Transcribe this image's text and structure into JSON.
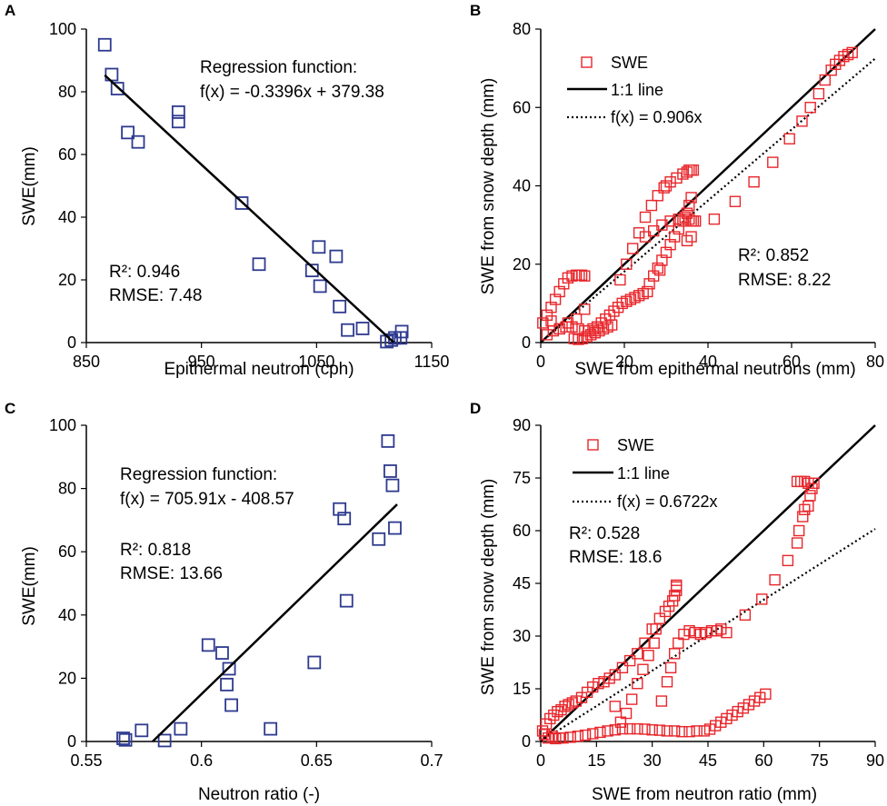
{
  "chart_data": [
    {
      "panel": "A",
      "type": "scatter",
      "xlabel": "Epithermal neutron (cph)",
      "ylabel": "SWE(mm)",
      "xlim": [
        850,
        1150
      ],
      "ylim": [
        0,
        100
      ],
      "xticks": [
        "850",
        "950",
        "1050",
        "1150"
      ],
      "yticks": [
        "0",
        "20",
        "40",
        "60",
        "80",
        "100"
      ],
      "marker_color": "#2e3a8f",
      "series": [
        {
          "name": "SWE",
          "x": [
            866,
            872,
            877,
            886,
            895,
            930,
            930,
            985,
            1000,
            1046,
            1052,
            1053,
            1067,
            1070,
            1077,
            1090,
            1111,
            1115,
            1118,
            1123,
            1124
          ],
          "y": [
            95,
            85.5,
            81,
            67,
            64,
            73.5,
            70.5,
            44.5,
            25,
            23,
            30.5,
            18,
            27.5,
            11.5,
            4,
            4.5,
            0.3,
            0.8,
            1.5,
            1.5,
            3.5
          ]
        }
      ],
      "regression": {
        "slope": -0.3396,
        "intercept": 379.38,
        "x_range": [
          866,
          1117
        ]
      },
      "annotations": {
        "regression_label": "Regression function:",
        "function_label": "f(x) = -0.3396x + 379.38",
        "r2_label": "R²: 0.946",
        "rmse_label": "RMSE: 7.48"
      }
    },
    {
      "panel": "B",
      "type": "scatter",
      "xlabel": "SWE from epithermal neutrons (mm)",
      "ylabel": "SWE from snow depth (mm)",
      "xlim": [
        0,
        80
      ],
      "ylim": [
        0,
        80
      ],
      "xticks": [
        "0",
        "20",
        "40",
        "60",
        "80"
      ],
      "yticks": [
        "0",
        "20",
        "40",
        "60",
        "80"
      ],
      "marker_color": "#e8262b",
      "series": [
        {
          "name": "SWE",
          "x": [
            0.5,
            1.5,
            2.5,
            3.5,
            4.5,
            5.5,
            6.5,
            7.5,
            8.5,
            9.2,
            9.8,
            10.5,
            1.5,
            3,
            4.5,
            6,
            7.5,
            9,
            10.5,
            11.5,
            12.5,
            13.5,
            14.5,
            15.5,
            16.5,
            17.5,
            18.5,
            19.5,
            20.5,
            21.5,
            22.5,
            23.5,
            24.5,
            25.5,
            26,
            27,
            28,
            29,
            30,
            31,
            32,
            33,
            34,
            35,
            35.5,
            36,
            19,
            20.5,
            22,
            23.5,
            25,
            26.5,
            28,
            29.5,
            31,
            32.5,
            34,
            35,
            35.5,
            36,
            36.5,
            25,
            27,
            29,
            31,
            33,
            34.5,
            35.5,
            36,
            36.5,
            37,
            41.5,
            46.5,
            51,
            55.5,
            59.5,
            62.5,
            64.5,
            66.5,
            68,
            69.5,
            70.5,
            71.5,
            72.5,
            73.5,
            74.5,
            8,
            9,
            10,
            11,
            12,
            13,
            14,
            15,
            16,
            17,
            2.5,
            4.5,
            6.5,
            8.5,
            10.5,
            28.5,
            30,
            35,
            36
          ],
          "y": [
            5,
            7,
            9,
            11,
            13,
            15,
            16.5,
            17,
            17.2,
            17.2,
            17.2,
            17,
            2,
            3,
            3.5,
            4,
            4,
            3.5,
            3,
            3,
            3.5,
            4,
            5,
            6,
            7,
            8,
            9,
            10,
            10.5,
            11,
            11.5,
            12,
            12.5,
            13,
            15,
            17,
            19,
            21,
            23,
            25,
            27,
            29,
            31,
            33,
            35,
            37,
            16,
            20,
            24,
            28,
            32,
            35,
            37.5,
            39.5,
            41,
            42,
            43,
            43.5,
            44,
            44,
            44,
            27,
            28.5,
            30,
            31,
            31.5,
            32,
            31.5,
            31,
            31,
            31,
            31.5,
            36,
            41,
            46,
            52,
            56.5,
            60,
            63.5,
            67,
            69.5,
            71,
            72,
            73,
            73.5,
            74,
            1,
            0.8,
            1,
            1.5,
            2,
            2.5,
            3,
            3.5,
            4,
            4.5,
            5.5,
            3.5,
            5,
            6,
            8.5,
            18.5,
            40,
            26,
            27
          ]
        }
      ],
      "reference_lines": [
        {
          "name": "1:1 line",
          "slope": 1,
          "style": "solid"
        },
        {
          "name": "f(x) = 0.906x",
          "slope": 0.906,
          "style": "dotted"
        }
      ],
      "legend": [
        "SWE",
        "1:1 line",
        "f(x) = 0.906x"
      ],
      "legend_position": "top-left",
      "annotations": {
        "r2_label": "R²: 0.852",
        "rmse_label": "RMSE: 8.22"
      }
    },
    {
      "panel": "C",
      "type": "scatter",
      "xlabel": "Neutron ratio (-)",
      "ylabel": "SWE(mm)",
      "xlim": [
        0.55,
        0.7
      ],
      "ylim": [
        0,
        100
      ],
      "xticks": [
        "0.55",
        "0.6",
        "0.65",
        "0.7"
      ],
      "yticks": [
        "0",
        "20",
        "40",
        "60",
        "80",
        "100"
      ],
      "marker_color": "#2e3a8f",
      "series": [
        {
          "name": "SWE",
          "x": [
            0.566,
            0.567,
            0.574,
            0.584,
            0.591,
            0.603,
            0.609,
            0.611,
            0.612,
            0.613,
            0.63,
            0.649,
            0.66,
            0.662,
            0.663,
            0.677,
            0.681,
            0.682,
            0.683,
            0.684
          ],
          "y": [
            1,
            0.5,
            3.5,
            0.3,
            4,
            30.5,
            28,
            18,
            23,
            11.5,
            4,
            25,
            73.5,
            70.5,
            44.5,
            64,
            95,
            85.5,
            81,
            67.5
          ]
        }
      ],
      "regression": {
        "slope": 705.91,
        "intercept": -408.57,
        "x_range": [
          0.5788,
          0.685
        ]
      },
      "annotations": {
        "regression_label": "Regression function:",
        "function_label": "f(x)  = 705.91x - 408.57",
        "r2_label": "R²: 0.818",
        "rmse_label": "RMSE: 13.66"
      }
    },
    {
      "panel": "D",
      "type": "scatter",
      "xlabel": "SWE from neutron ratio (mm)",
      "ylabel": "SWE from snow depth (mm)",
      "xlim": [
        0,
        90
      ],
      "ylim": [
        0,
        90
      ],
      "xticks": [
        "0",
        "15",
        "30",
        "45",
        "60",
        "75",
        "90"
      ],
      "yticks": [
        "0",
        "15",
        "30",
        "45",
        "60",
        "75",
        "90"
      ],
      "marker_color": "#e8262b",
      "series": [
        {
          "name": "SWE",
          "x": [
            0.5,
            1.5,
            2.5,
            3.5,
            4.5,
            5.5,
            6.5,
            7.5,
            8.5,
            9.5,
            11,
            12.5,
            14,
            15.5,
            17,
            18.5,
            20,
            22,
            24,
            26,
            28,
            30,
            32,
            33.5,
            34.5,
            35.5,
            36,
            36.5,
            36.5,
            36.5,
            20,
            21.5,
            23,
            24.5,
            26,
            27.5,
            29,
            30.5,
            31,
            32.5,
            34,
            35,
            36,
            37,
            38.5,
            40,
            41.5,
            43,
            44.5,
            46,
            47.5,
            48.5,
            50,
            55,
            59.5,
            63,
            66.5,
            69,
            69.5,
            70.5,
            71,
            72,
            72.5,
            73,
            73.5,
            72,
            71,
            70,
            69,
            2,
            4,
            6,
            8,
            10,
            12,
            14,
            16,
            18,
            20,
            22,
            24,
            26,
            28,
            30,
            32,
            34,
            36,
            38,
            40,
            42,
            44,
            45.5,
            47,
            48.5,
            50,
            51.5,
            53,
            54.5,
            56,
            57.5,
            59,
            60.5,
            1,
            3,
            5
          ],
          "y": [
            3,
            5,
            6.5,
            7.5,
            8.5,
            9,
            10,
            10.5,
            11,
            11.5,
            12.5,
            14,
            15.5,
            16.5,
            17,
            18,
            19,
            21,
            23,
            25,
            28,
            32,
            35,
            37,
            38.5,
            40,
            41.5,
            43,
            44,
            44.5,
            10,
            5.5,
            8,
            12,
            16.5,
            20.5,
            24.5,
            28,
            32,
            11.5,
            17,
            21,
            25,
            28,
            30.5,
            31.5,
            31,
            30.5,
            31,
            31.5,
            31.5,
            32,
            31,
            36,
            40.5,
            46,
            51.5,
            56.5,
            60,
            64,
            66,
            67,
            70,
            72,
            73.5,
            73.5,
            74,
            74,
            74,
            1,
            0.8,
            1,
            1.2,
            1.5,
            1.8,
            2.2,
            2.6,
            3,
            3.3,
            3.6,
            3.6,
            3.6,
            3.5,
            3.3,
            3.2,
            3,
            3,
            2.8,
            2.8,
            3,
            3,
            3.5,
            4.5,
            5.5,
            6.5,
            7.5,
            8.5,
            9.5,
            10.5,
            11.5,
            12.5,
            13.5,
            2,
            1.5,
            1
          ]
        }
      ],
      "reference_lines": [
        {
          "name": "1:1 line",
          "slope": 1,
          "style": "solid"
        },
        {
          "name": "f(x) = 0.6722x",
          "slope": 0.6722,
          "style": "dotted"
        }
      ],
      "legend": [
        "SWE",
        "1:1 line",
        "f(x) = 0.6722x"
      ],
      "legend_position": "top-left",
      "annotations": {
        "r2_label": "R²: 0.528",
        "rmse_label": "RMSE: 18.6"
      }
    }
  ]
}
